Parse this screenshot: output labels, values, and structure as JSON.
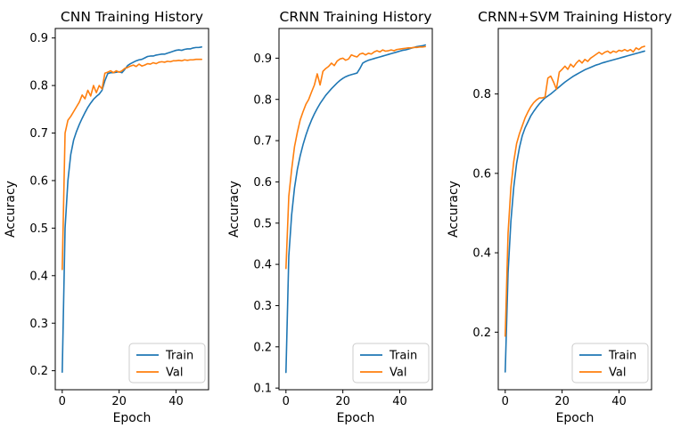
{
  "figure": {
    "background": "#ffffff",
    "axis_color": "#000000",
    "text_color": "#000000",
    "legend_border_color": "#cccccc",
    "train_color": "#1f77b4",
    "val_color": "#ff7f0e"
  },
  "chart_data": [
    {
      "type": "line",
      "title": "CNN Training History",
      "xlabel": "Epoch",
      "ylabel": "Accuracy",
      "x_is_index": true,
      "xlim": [
        -2.45,
        51.45
      ],
      "ylim": [
        0.16,
        0.92
      ],
      "xticks": [
        0,
        20,
        40
      ],
      "yticks": [
        0.2,
        0.3,
        0.4,
        0.5,
        0.6,
        0.7,
        0.8,
        0.9
      ],
      "grid": false,
      "legend_position": "lower right",
      "series": [
        {
          "name": "Train",
          "color": "#1f77b4",
          "values": [
            0.197,
            0.5,
            0.6,
            0.655,
            0.685,
            0.703,
            0.718,
            0.731,
            0.743,
            0.754,
            0.763,
            0.771,
            0.777,
            0.782,
            0.79,
            0.81,
            0.825,
            0.827,
            0.827,
            0.828,
            0.829,
            0.827,
            0.834,
            0.842,
            0.846,
            0.849,
            0.852,
            0.854,
            0.855,
            0.858,
            0.861,
            0.862,
            0.862,
            0.864,
            0.865,
            0.866,
            0.866,
            0.868,
            0.87,
            0.872,
            0.874,
            0.875,
            0.874,
            0.876,
            0.877,
            0.877,
            0.879,
            0.88,
            0.88,
            0.881
          ]
        },
        {
          "name": "Val",
          "color": "#ff7f0e",
          "values": [
            0.413,
            0.7,
            0.727,
            0.735,
            0.745,
            0.755,
            0.765,
            0.78,
            0.772,
            0.79,
            0.778,
            0.8,
            0.785,
            0.8,
            0.793,
            0.826,
            0.828,
            0.831,
            0.827,
            0.831,
            0.828,
            0.831,
            0.836,
            0.838,
            0.841,
            0.843,
            0.84,
            0.845,
            0.841,
            0.843,
            0.846,
            0.845,
            0.848,
            0.846,
            0.849,
            0.85,
            0.849,
            0.851,
            0.85,
            0.852,
            0.852,
            0.853,
            0.852,
            0.854,
            0.853,
            0.854,
            0.854,
            0.855,
            0.855,
            0.855
          ]
        }
      ]
    },
    {
      "type": "line",
      "title": "CRNN Training History",
      "xlabel": "Epoch",
      "ylabel": "Accuracy",
      "x_is_index": true,
      "xlim": [
        -2.45,
        51.45
      ],
      "ylim": [
        0.096,
        0.972
      ],
      "xticks": [
        0,
        20,
        40
      ],
      "yticks": [
        0.1,
        0.2,
        0.3,
        0.4,
        0.5,
        0.6,
        0.7,
        0.8,
        0.9
      ],
      "grid": false,
      "legend_position": "lower right",
      "series": [
        {
          "name": "Train",
          "color": "#1f77b4",
          "values": [
            0.138,
            0.42,
            0.52,
            0.585,
            0.63,
            0.663,
            0.69,
            0.713,
            0.733,
            0.75,
            0.765,
            0.778,
            0.79,
            0.8,
            0.81,
            0.818,
            0.826,
            0.833,
            0.84,
            0.846,
            0.851,
            0.855,
            0.858,
            0.86,
            0.862,
            0.864,
            0.875,
            0.888,
            0.892,
            0.895,
            0.897,
            0.899,
            0.901,
            0.903,
            0.905,
            0.907,
            0.909,
            0.911,
            0.913,
            0.915,
            0.917,
            0.919,
            0.92,
            0.922,
            0.924,
            0.926,
            0.928,
            0.929,
            0.93,
            0.932
          ]
        },
        {
          "name": "Val",
          "color": "#ff7f0e",
          "values": [
            0.39,
            0.565,
            0.63,
            0.685,
            0.72,
            0.75,
            0.77,
            0.788,
            0.8,
            0.818,
            0.835,
            0.862,
            0.835,
            0.868,
            0.875,
            0.88,
            0.888,
            0.882,
            0.893,
            0.898,
            0.9,
            0.895,
            0.898,
            0.908,
            0.905,
            0.903,
            0.91,
            0.912,
            0.908,
            0.912,
            0.91,
            0.915,
            0.918,
            0.915,
            0.92,
            0.917,
            0.918,
            0.92,
            0.918,
            0.921,
            0.922,
            0.923,
            0.924,
            0.925,
            0.925,
            0.926,
            0.926,
            0.927,
            0.927,
            0.928
          ]
        }
      ]
    },
    {
      "type": "line",
      "title": "CRNN+SVM Training History",
      "xlabel": "Epoch",
      "ylabel": "Accuracy",
      "x_is_index": true,
      "xlim": [
        -2.45,
        51.45
      ],
      "ylim": [
        0.055,
        0.965
      ],
      "xticks": [
        0,
        20,
        40
      ],
      "yticks": [
        0.2,
        0.4,
        0.6,
        0.8
      ],
      "grid": false,
      "legend_position": "lower right",
      "series": [
        {
          "name": "Train",
          "color": "#1f77b4",
          "values": [
            0.1,
            0.35,
            0.48,
            0.565,
            0.625,
            0.665,
            0.695,
            0.715,
            0.73,
            0.745,
            0.756,
            0.766,
            0.775,
            0.783,
            0.79,
            0.795,
            0.8,
            0.806,
            0.812,
            0.818,
            0.824,
            0.83,
            0.835,
            0.84,
            0.845,
            0.849,
            0.853,
            0.857,
            0.861,
            0.864,
            0.867,
            0.87,
            0.873,
            0.875,
            0.878,
            0.88,
            0.882,
            0.884,
            0.886,
            0.888,
            0.89,
            0.892,
            0.894,
            0.896,
            0.898,
            0.9,
            0.902,
            0.904,
            0.906,
            0.908
          ]
        },
        {
          "name": "Val",
          "color": "#ff7f0e",
          "values": [
            0.19,
            0.45,
            0.565,
            0.63,
            0.675,
            0.7,
            0.72,
            0.74,
            0.755,
            0.768,
            0.778,
            0.785,
            0.79,
            0.79,
            0.792,
            0.84,
            0.845,
            0.83,
            0.812,
            0.855,
            0.862,
            0.87,
            0.862,
            0.875,
            0.868,
            0.878,
            0.885,
            0.878,
            0.887,
            0.882,
            0.89,
            0.895,
            0.9,
            0.905,
            0.9,
            0.905,
            0.908,
            0.903,
            0.908,
            0.905,
            0.91,
            0.908,
            0.912,
            0.908,
            0.912,
            0.906,
            0.916,
            0.912,
            0.918,
            0.92
          ]
        }
      ]
    }
  ]
}
